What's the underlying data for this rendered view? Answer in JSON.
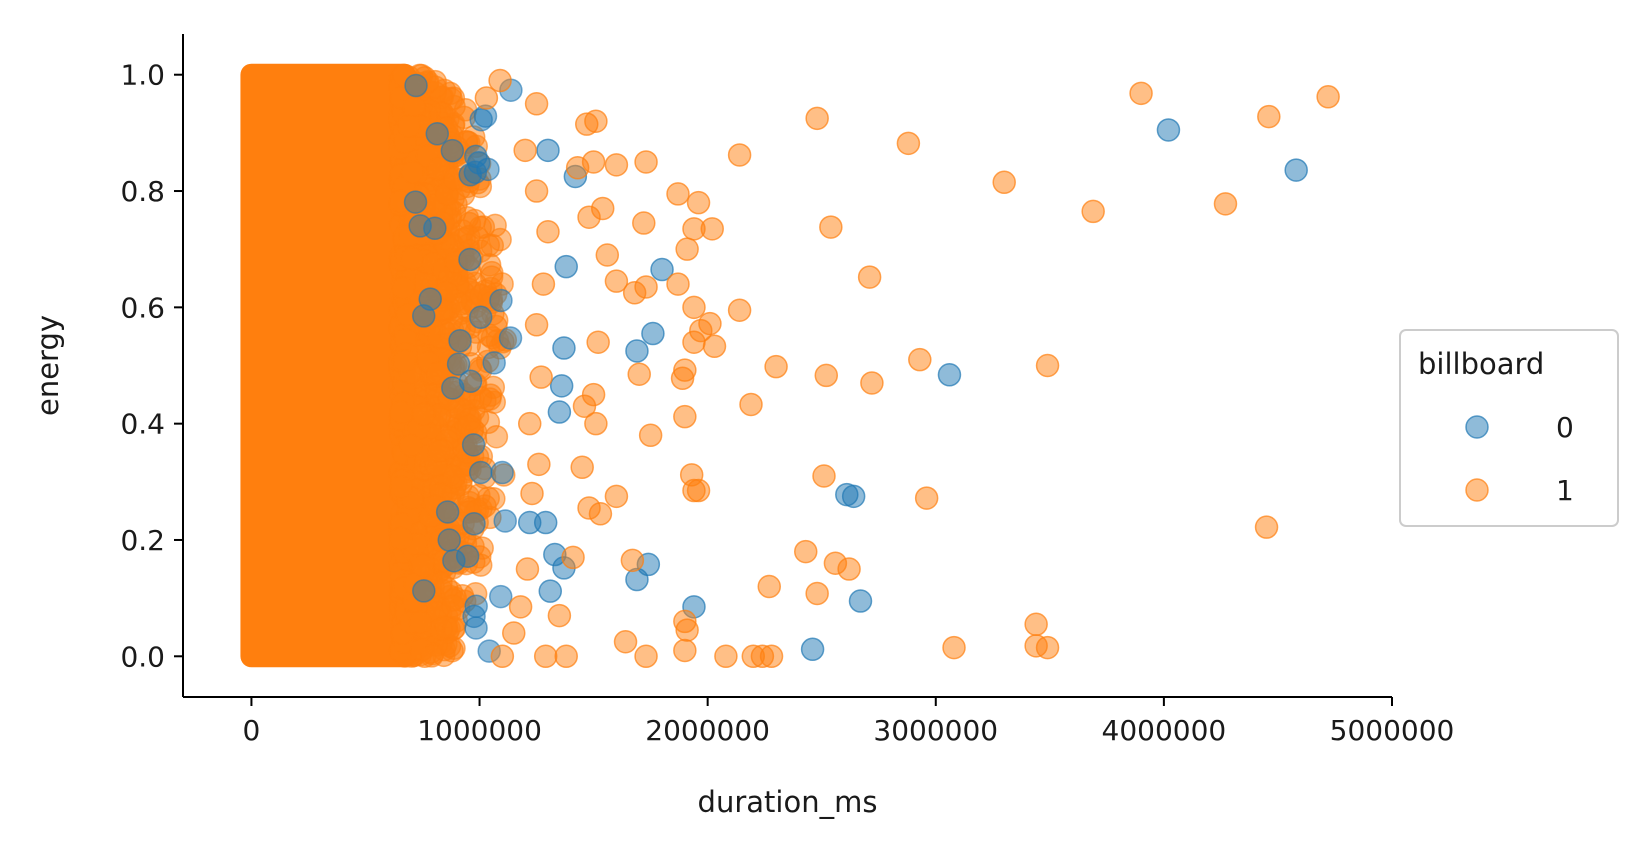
{
  "chart_data": {
    "type": "scatter",
    "title": "",
    "xlabel": "duration_ms",
    "ylabel": "energy",
    "xlim": [
      -300000,
      5000000
    ],
    "ylim": [
      -0.07,
      1.07
    ],
    "x_ticks": [
      0,
      1000000,
      2000000,
      3000000,
      4000000,
      5000000
    ],
    "x_tick_labels": [
      "0",
      "1000000",
      "2000000",
      "3000000",
      "4000000",
      "5000000"
    ],
    "y_ticks": [
      0.0,
      0.2,
      0.4,
      0.6,
      0.8,
      1.0
    ],
    "y_tick_labels": [
      "0.0",
      "0.2",
      "0.4",
      "0.6",
      "0.8",
      "1.0"
    ],
    "grid": false,
    "legend": {
      "title": "billboard",
      "placement": "center-right-outside",
      "entries": [
        "0",
        "1"
      ]
    },
    "dense_region": {
      "description_x_range": [
        0,
        1000000
      ],
      "y_range": [
        0.0,
        1.0
      ]
    },
    "series": [
      {
        "name": "0",
        "color": "#1f77b4",
        "opacity": 0.5,
        "points": [
          [
            4020000,
            0.905
          ],
          [
            4580000,
            0.836
          ],
          [
            3060000,
            0.484
          ],
          [
            2640000,
            0.275
          ],
          [
            2610000,
            0.278
          ],
          [
            2670000,
            0.095
          ],
          [
            2460000,
            0.012
          ],
          [
            1940000,
            0.085
          ],
          [
            1800000,
            0.665
          ],
          [
            1760000,
            0.555
          ],
          [
            1690000,
            0.525
          ],
          [
            1740000,
            0.158
          ],
          [
            1690000,
            0.132
          ],
          [
            1380000,
            0.67
          ],
          [
            1420000,
            0.825
          ],
          [
            1370000,
            0.53
          ],
          [
            1360000,
            0.465
          ],
          [
            1350000,
            0.42
          ],
          [
            1370000,
            0.152
          ],
          [
            1310000,
            0.112
          ],
          [
            1290000,
            0.23
          ],
          [
            1330000,
            0.175
          ],
          [
            1300000,
            0.87
          ],
          [
            1220000,
            0.23
          ]
        ]
      },
      {
        "name": "1",
        "color": "#ff7f0e",
        "opacity": 0.5,
        "points": [
          [
            3900000,
            0.968
          ],
          [
            4720000,
            0.962
          ],
          [
            4460000,
            0.928
          ],
          [
            2480000,
            0.925
          ],
          [
            2880000,
            0.882
          ],
          [
            2140000,
            0.862
          ],
          [
            3300000,
            0.815
          ],
          [
            4270000,
            0.778
          ],
          [
            3690000,
            0.765
          ],
          [
            2540000,
            0.738
          ],
          [
            2710000,
            0.652
          ],
          [
            2140000,
            0.595
          ],
          [
            2930000,
            0.51
          ],
          [
            3490000,
            0.5
          ],
          [
            2300000,
            0.498
          ],
          [
            2520000,
            0.483
          ],
          [
            2720000,
            0.47
          ],
          [
            2190000,
            0.433
          ],
          [
            2510000,
            0.31
          ],
          [
            2960000,
            0.272
          ],
          [
            4450000,
            0.222
          ],
          [
            2430000,
            0.18
          ],
          [
            2560000,
            0.16
          ],
          [
            2620000,
            0.15
          ],
          [
            2270000,
            0.12
          ],
          [
            2480000,
            0.108
          ],
          [
            3440000,
            0.055
          ],
          [
            3080000,
            0.015
          ],
          [
            3440000,
            0.018
          ],
          [
            3490000,
            0.015
          ],
          [
            2080000,
            0.0
          ],
          [
            2200000,
            0.0
          ],
          [
            2240000,
            0.0
          ],
          [
            2280000,
            0.0
          ],
          [
            1870000,
            0.795
          ],
          [
            1960000,
            0.78
          ],
          [
            2020000,
            0.735
          ],
          [
            1940000,
            0.735
          ],
          [
            1910000,
            0.7
          ],
          [
            1730000,
            0.85
          ],
          [
            1600000,
            0.845
          ],
          [
            1720000,
            0.745
          ],
          [
            1870000,
            0.64
          ],
          [
            1940000,
            0.6
          ],
          [
            1970000,
            0.56
          ],
          [
            2010000,
            0.572
          ],
          [
            2030000,
            0.533
          ],
          [
            1940000,
            0.54
          ],
          [
            1730000,
            0.635
          ],
          [
            1680000,
            0.625
          ],
          [
            1900000,
            0.492
          ],
          [
            1890000,
            0.478
          ],
          [
            1900000,
            0.412
          ],
          [
            1700000,
            0.485
          ],
          [
            1750000,
            0.38
          ],
          [
            1930000,
            0.312
          ],
          [
            1960000,
            0.285
          ],
          [
            1940000,
            0.285
          ],
          [
            1670000,
            0.165
          ],
          [
            1900000,
            0.06
          ],
          [
            1910000,
            0.045
          ],
          [
            1640000,
            0.025
          ],
          [
            1730000,
            0.0
          ],
          [
            1900000,
            0.01
          ],
          [
            1600000,
            0.645
          ],
          [
            1560000,
            0.69
          ],
          [
            1480000,
            0.755
          ],
          [
            1500000,
            0.85
          ],
          [
            1510000,
            0.92
          ],
          [
            1470000,
            0.915
          ],
          [
            1430000,
            0.84
          ],
          [
            1540000,
            0.77
          ],
          [
            1520000,
            0.54
          ],
          [
            1500000,
            0.45
          ],
          [
            1460000,
            0.43
          ],
          [
            1510000,
            0.4
          ],
          [
            1450000,
            0.325
          ],
          [
            1480000,
            0.255
          ],
          [
            1530000,
            0.245
          ],
          [
            1600000,
            0.275
          ],
          [
            1410000,
            0.17
          ],
          [
            1350000,
            0.07
          ],
          [
            1380000,
            0.0
          ],
          [
            1290000,
            0.0
          ],
          [
            1250000,
            0.95
          ],
          [
            1200000,
            0.87
          ],
          [
            1250000,
            0.8
          ],
          [
            1300000,
            0.73
          ],
          [
            1280000,
            0.64
          ],
          [
            1250000,
            0.57
          ],
          [
            1270000,
            0.48
          ],
          [
            1220000,
            0.4
          ],
          [
            1260000,
            0.33
          ],
          [
            1230000,
            0.28
          ],
          [
            1210000,
            0.15
          ],
          [
            1180000,
            0.085
          ],
          [
            1150000,
            0.04
          ],
          [
            1100000,
            0.0
          ],
          [
            1090000,
            0.99
          ],
          [
            1030000,
            0.96
          ]
        ]
      }
    ]
  }
}
